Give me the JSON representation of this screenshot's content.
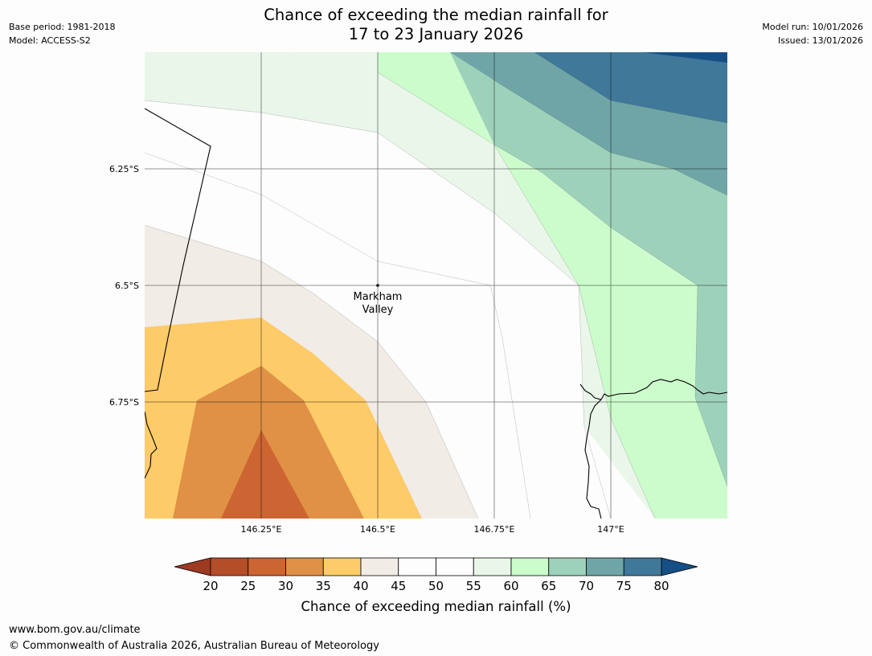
{
  "header": {
    "title_line1": "Chance of exceeding the median rainfall for",
    "title_line2": "17 to 23 January 2026",
    "base_period": "Base period: 1981-2018",
    "model": "Model: ACCESS-S2",
    "model_run": "Model run: 10/01/2026",
    "issued": "Issued: 13/01/2026"
  },
  "map": {
    "place_label_line1": "Markham",
    "place_label_line2": "Valley",
    "lat_labels": [
      "6.25°S",
      "6.5°S",
      "6.75°S"
    ],
    "lon_labels": [
      "146.25°E",
      "146.5°E",
      "146.75°E",
      "147°E"
    ],
    "extent": {
      "lon": [
        146.0,
        147.25
      ],
      "lat": [
        -6.0,
        -7.0
      ]
    },
    "gridlines": {
      "lon": [
        146.25,
        146.5,
        146.75,
        147.0
      ],
      "lat": [
        -6.25,
        -6.5,
        -6.75
      ]
    },
    "place_point": {
      "lon": 146.5,
      "lat": -6.5
    }
  },
  "legend": {
    "title": "Chance of exceeding median rainfall (%)",
    "ticks": [
      "20",
      "25",
      "30",
      "35",
      "40",
      "45",
      "50",
      "55",
      "60",
      "65",
      "70",
      "75",
      "80"
    ],
    "under_color": "#9c3a22",
    "over_color": "#154f86",
    "bin_colors": [
      "#b54d28",
      "#cd6532",
      "#e09145",
      "#fdcb68",
      "#f1ece6",
      "#fdfdfd",
      "#fdfdfd",
      "#eaf6ea",
      "#ccfccc",
      "#9ed1ba",
      "#6fa5a6",
      "#3f7899"
    ]
  },
  "footer": {
    "url": "www.bom.gov.au/climate",
    "copyright": "© Commonwealth of Australia 2026, Australian Bureau of Meteorology"
  }
}
